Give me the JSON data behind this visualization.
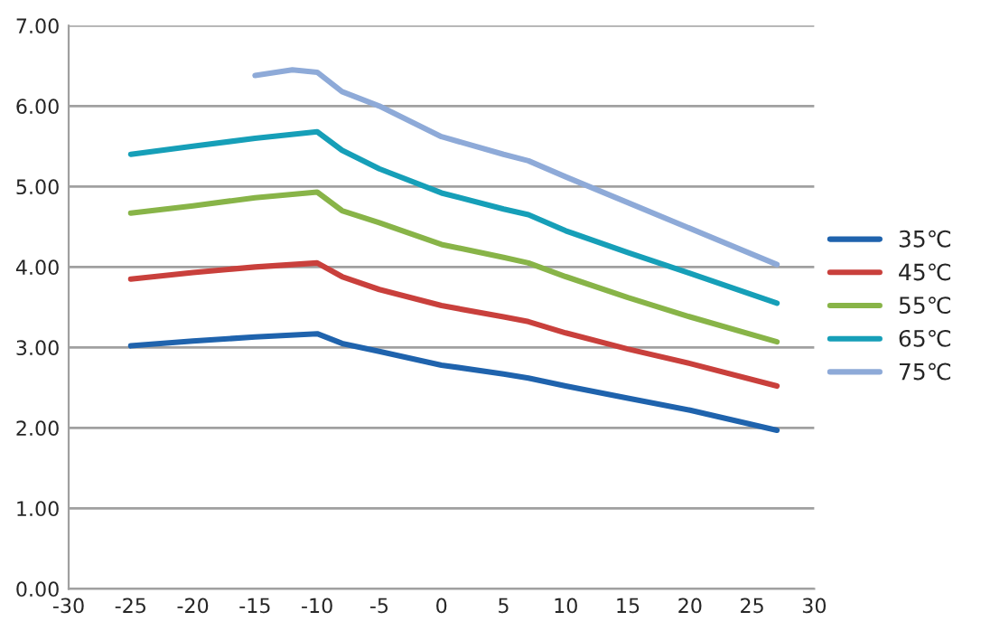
{
  "chart_data": {
    "type": "line",
    "x": [
      -25,
      -20,
      -15,
      -10,
      -8,
      -5,
      0,
      5,
      7,
      10,
      15,
      20,
      27
    ],
    "series": [
      {
        "name": "35℃",
        "color": "#1f63ad",
        "values": [
          3.02,
          3.08,
          3.13,
          3.17,
          3.05,
          2.95,
          2.78,
          2.67,
          2.62,
          2.52,
          2.37,
          2.22,
          1.97
        ]
      },
      {
        "name": "45℃",
        "color": "#c9403c",
        "values": [
          3.85,
          3.93,
          4.0,
          4.05,
          3.88,
          3.72,
          3.52,
          3.38,
          3.32,
          3.18,
          2.98,
          2.8,
          2.52
        ]
      },
      {
        "name": "55℃",
        "color": "#88b448",
        "values": [
          4.67,
          4.76,
          4.86,
          4.93,
          4.7,
          4.55,
          4.28,
          4.12,
          4.05,
          3.88,
          3.62,
          3.38,
          3.07
        ]
      },
      {
        "name": "65℃",
        "color": "#169fb8",
        "values": [
          5.4,
          5.5,
          5.6,
          5.68,
          5.45,
          5.22,
          4.92,
          4.72,
          4.65,
          4.45,
          4.18,
          3.92,
          3.55
        ]
      },
      {
        "name": "75℃",
        "color": "#8eaad8",
        "x": [
          -15,
          -12,
          -10,
          -8,
          -5,
          0,
          5,
          7,
          10,
          15,
          20,
          27
        ],
        "values": [
          6.38,
          6.45,
          6.42,
          6.18,
          6.0,
          5.62,
          5.4,
          5.32,
          5.12,
          4.8,
          4.48,
          4.03
        ]
      }
    ],
    "xlim": [
      -30,
      30
    ],
    "xticks": [
      -30,
      -25,
      -20,
      -15,
      -10,
      -5,
      0,
      5,
      10,
      15,
      20,
      25,
      30
    ],
    "ylim": [
      0,
      7
    ],
    "yticks": [
      {
        "value": 0,
        "label": "0.00"
      },
      {
        "value": 1,
        "label": "1.00"
      },
      {
        "value": 2,
        "label": "2.00"
      },
      {
        "value": 3,
        "label": "3.00"
      },
      {
        "value": 4,
        "label": "4.00"
      },
      {
        "value": 5,
        "label": "5.00"
      },
      {
        "value": 6,
        "label": "6.00"
      },
      {
        "value": 7,
        "label": "7.00"
      }
    ],
    "grid": "y",
    "legend": "right",
    "marker": "none",
    "line_style": "solid"
  }
}
